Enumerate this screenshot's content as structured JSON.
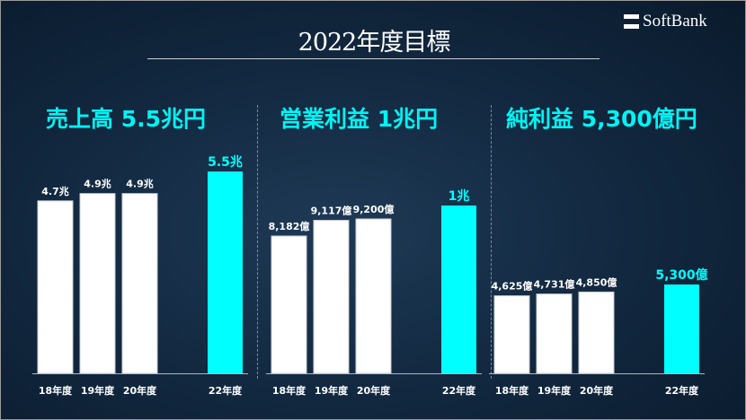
{
  "title": "2022年度目標",
  "logo": "SoftBank",
  "colors": {
    "actual": "#ffffff",
    "target": "#00ffff",
    "heading": "#00f4f4",
    "background": "#132a42"
  },
  "chart_data": [
    {
      "type": "bar",
      "title": "売上高 5.5兆円",
      "categories": [
        "18年度",
        "19年度",
        "20年度",
        "22年度"
      ],
      "values": [
        4.7,
        4.9,
        4.9,
        5.5
      ],
      "unit": "兆円",
      "labels": [
        "4.7兆",
        "4.9兆",
        "4.9兆",
        "5.5兆"
      ],
      "ylim": [
        0,
        5.87
      ]
    },
    {
      "type": "bar",
      "title": "営業利益 1兆円",
      "categories": [
        "18年度",
        "19年度",
        "20年度",
        "22年度"
      ],
      "values": [
        8182,
        9117,
        9200,
        10000
      ],
      "unit": "億円",
      "labels": [
        "8,182億",
        "9,117億",
        "9,200億",
        "1兆"
      ],
      "ylim": [
        0,
        12834
      ]
    },
    {
      "type": "bar",
      "title": "純利益 5,300億円",
      "categories": [
        "18年度",
        "19年度",
        "20年度",
        "22年度"
      ],
      "values": [
        4625,
        4731,
        4850,
        5300
      ],
      "unit": "億円",
      "labels": [
        "4,625億",
        "4,731億",
        "4,850億",
        "5,300億"
      ],
      "ylim": [
        0,
        12848
      ]
    }
  ]
}
